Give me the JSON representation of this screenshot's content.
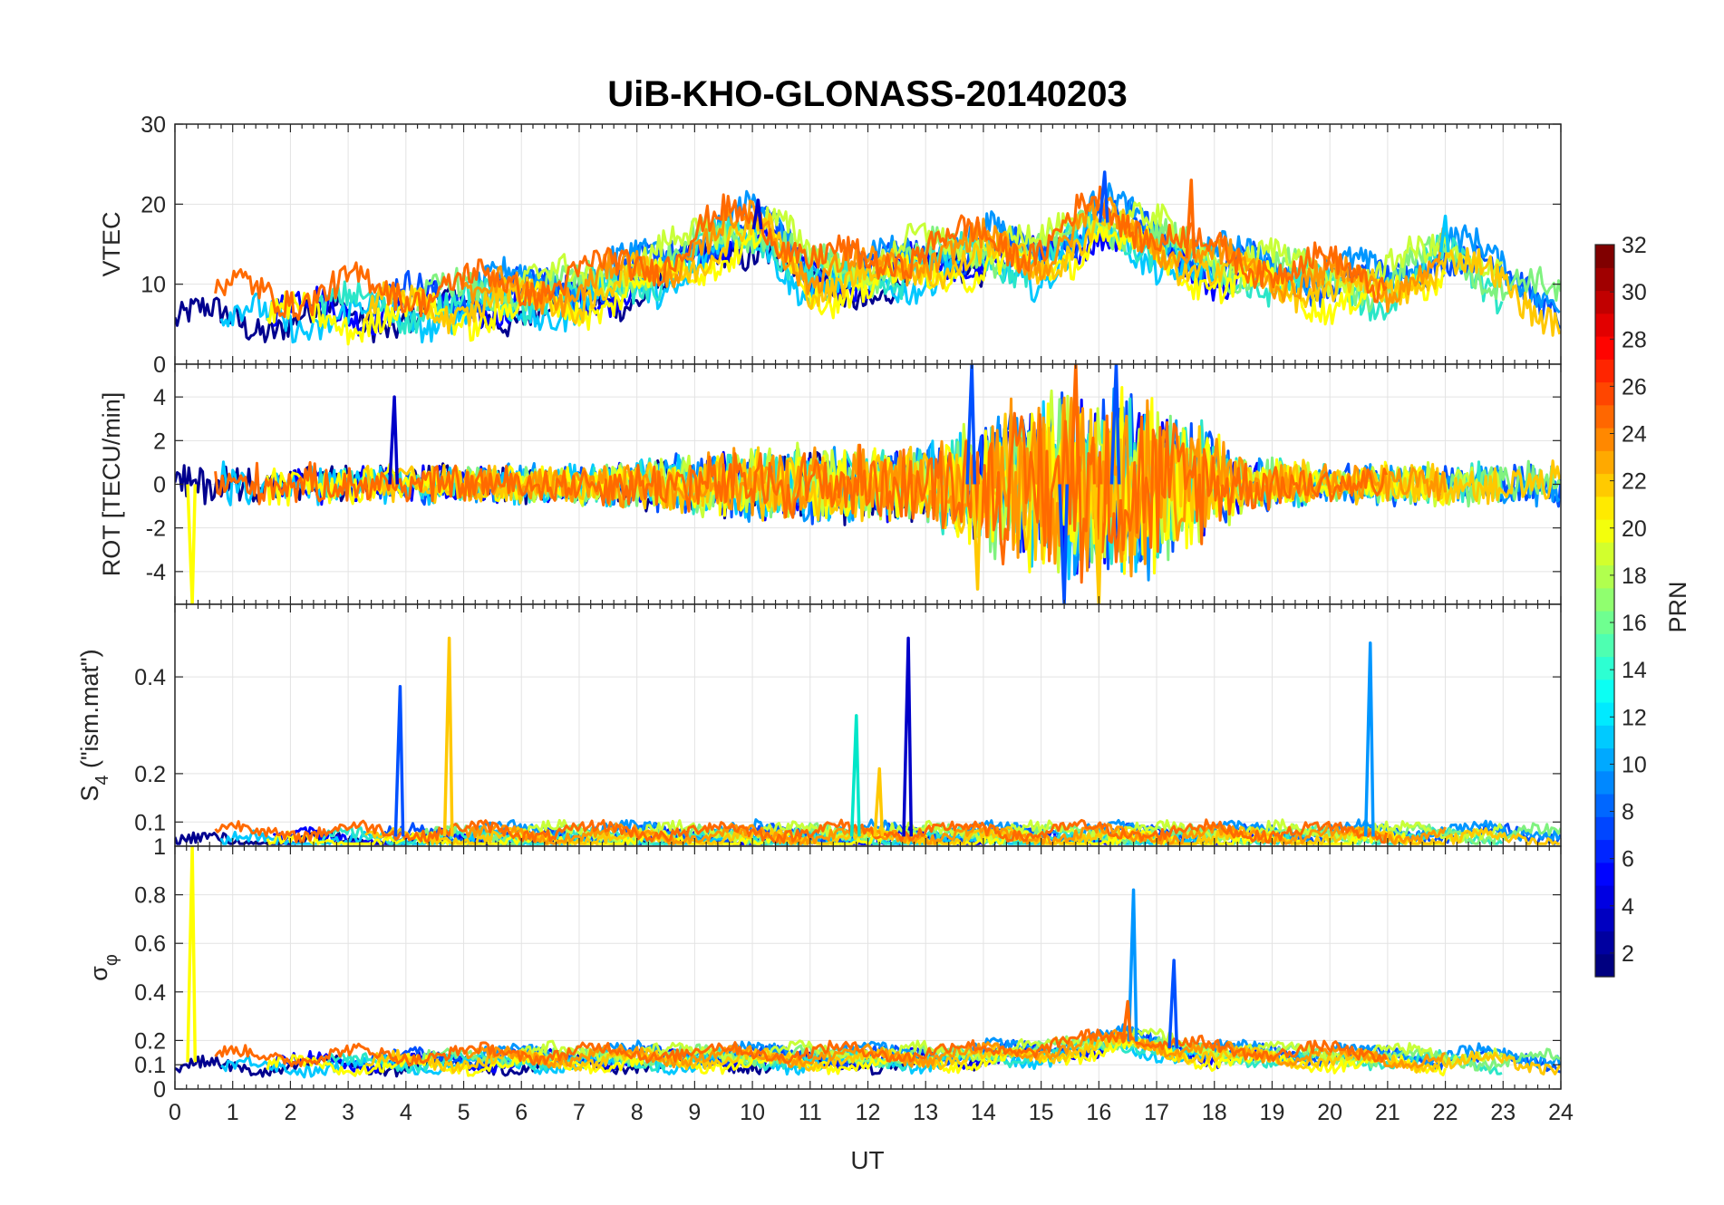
{
  "chart_data": {
    "type": "line",
    "title": "UiB-KHO-GLONASS-20140203",
    "xlabel": "UT",
    "xlim": [
      0,
      24
    ],
    "x_ticks": [
      "0",
      "1",
      "2",
      "3",
      "4",
      "5",
      "6",
      "7",
      "8",
      "9",
      "10",
      "11",
      "12",
      "13",
      "14",
      "15",
      "16",
      "17",
      "18",
      "19",
      "20",
      "21",
      "22",
      "23",
      "24"
    ],
    "panels": [
      {
        "id": "vtec",
        "ylabel": "VTEC",
        "ylim": [
          0,
          30
        ],
        "y_ticks": [
          {
            "v": 10,
            "t": "10"
          },
          {
            "v": 20,
            "t": "20"
          },
          {
            "v": 30,
            "t": "30"
          }
        ],
        "top_label": "",
        "bottom_label": "0",
        "baseline": 7,
        "series_profile": [
          [
            0,
            7
          ],
          [
            3,
            7.5
          ],
          [
            5,
            8
          ],
          [
            7,
            9
          ],
          [
            8.5,
            12
          ],
          [
            9.5,
            16
          ],
          [
            10.2,
            17
          ],
          [
            11,
            11
          ],
          [
            12,
            11
          ],
          [
            13,
            13
          ],
          [
            14,
            14
          ],
          [
            15,
            13
          ],
          [
            16,
            18
          ],
          [
            17,
            15
          ],
          [
            18,
            12
          ],
          [
            20,
            10
          ],
          [
            21,
            9
          ],
          [
            22,
            14
          ],
          [
            23,
            10
          ],
          [
            24,
            7
          ]
        ],
        "amplitude": 4.5,
        "spikes": [
          {
            "x": 16.1,
            "y": 24,
            "color": "#0050ff"
          },
          {
            "x": 17.6,
            "y": 23,
            "color": "#ff6a00"
          },
          {
            "x": 10.1,
            "y": 20.5,
            "color": "#0000c8"
          },
          {
            "x": 22.0,
            "y": 18.5,
            "color": "#00c8ff"
          }
        ]
      },
      {
        "id": "rot",
        "ylabel": "ROT [TECU/min]",
        "ylim": [
          -5.5,
          5.5
        ],
        "y_ticks": [
          {
            "v": -4,
            "t": "-4"
          },
          {
            "v": -2,
            "t": "-2"
          },
          {
            "v": 0,
            "t": "0"
          },
          {
            "v": 2,
            "t": "2"
          },
          {
            "v": 4,
            "t": "4"
          }
        ],
        "top_label": "",
        "bottom_label": "",
        "baseline": 0,
        "series_profile": [
          [
            0,
            0
          ],
          [
            24,
            0
          ]
        ],
        "envelope": [
          [
            0,
            1.2
          ],
          [
            3,
            1.0
          ],
          [
            7,
            1.0
          ],
          [
            9,
            1.5
          ],
          [
            11,
            2.0
          ],
          [
            13,
            2.0
          ],
          [
            14,
            3.5
          ],
          [
            15,
            4.5
          ],
          [
            16.5,
            5.0
          ],
          [
            17.5,
            3.5
          ],
          [
            18.5,
            1.5
          ],
          [
            20,
            1.0
          ],
          [
            24,
            1.2
          ]
        ],
        "spikes": [
          {
            "x": 3.8,
            "y": 4.0,
            "color": "#0000c8"
          },
          {
            "x": 13.8,
            "y": 5.5,
            "color": "#0050ff"
          },
          {
            "x": 15.6,
            "y": 5.5,
            "color": "#ff6a00"
          },
          {
            "x": 16.3,
            "y": 5.5,
            "color": "#0050ff"
          },
          {
            "x": 16.0,
            "y": -5.5,
            "color": "#ffc800"
          },
          {
            "x": 15.4,
            "y": -5.5,
            "color": "#0050ff"
          },
          {
            "x": 0.3,
            "y": -5.5,
            "color": "#ffff00"
          },
          {
            "x": 13.9,
            "y": -4.8,
            "color": "#ffc800"
          }
        ]
      },
      {
        "id": "s4",
        "ylabel_main": "S",
        "ylabel_sub": "4",
        "ylabel_rest": " (\"ism.mat\")",
        "ylim": [
          0.05,
          0.55
        ],
        "y_ticks": [
          {
            "v": 0.1,
            "t": "0.1"
          },
          {
            "v": 0.2,
            "t": "0.2"
          },
          {
            "v": 0.4,
            "t": "0.4"
          }
        ],
        "top_label": "",
        "bottom_label": "",
        "baseline": 0.07,
        "series_profile": [
          [
            0,
            0.07
          ],
          [
            24,
            0.07
          ]
        ],
        "amplitude": 0.03,
        "spikes": [
          {
            "x": 3.9,
            "y": 0.38,
            "color": "#0050ff"
          },
          {
            "x": 4.75,
            "y": 0.48,
            "color": "#ffc800"
          },
          {
            "x": 11.8,
            "y": 0.32,
            "color": "#00e6c8"
          },
          {
            "x": 12.7,
            "y": 0.48,
            "color": "#0000c8"
          },
          {
            "x": 20.7,
            "y": 0.47,
            "color": "#0096ff"
          },
          {
            "x": 12.2,
            "y": 0.21,
            "color": "#ffc800"
          }
        ]
      },
      {
        "id": "sigma",
        "ylabel_main": "σ",
        "ylabel_sub": "φ",
        "ylabel_rest": "",
        "ylim": [
          0,
          1
        ],
        "y_ticks": [
          {
            "v": 0,
            "t": "0"
          },
          {
            "v": 0.1,
            "t": "0.1"
          },
          {
            "v": 0.2,
            "t": "0.2"
          },
          {
            "v": 0.4,
            "t": "0.4"
          },
          {
            "v": 0.6,
            "t": "0.6"
          },
          {
            "v": 0.8,
            "t": "0.8"
          }
        ],
        "top_label": "1",
        "bottom_label": "",
        "baseline": 0.11,
        "series_profile": [
          [
            0,
            0.11
          ],
          [
            8,
            0.13
          ],
          [
            13,
            0.13
          ],
          [
            15,
            0.15
          ],
          [
            16.5,
            0.2
          ],
          [
            18,
            0.14
          ],
          [
            24,
            0.11
          ]
        ],
        "amplitude": 0.06,
        "spikes": [
          {
            "x": 0.3,
            "y": 1.0,
            "color": "#ffff00"
          },
          {
            "x": 16.6,
            "y": 0.82,
            "color": "#0096ff"
          },
          {
            "x": 17.3,
            "y": 0.53,
            "color": "#0050ff"
          },
          {
            "x": 16.5,
            "y": 0.36,
            "color": "#ff6a00"
          }
        ]
      }
    ],
    "series": [
      {
        "name": "",
        "color": "#00008f"
      },
      {
        "name": "",
        "color": "#0000ff"
      },
      {
        "name": "",
        "color": "#0050ff"
      },
      {
        "name": "",
        "color": "#0096ff"
      },
      {
        "name": "",
        "color": "#00c8ff"
      },
      {
        "name": "",
        "color": "#2be6c8"
      },
      {
        "name": "",
        "color": "#7ff27f"
      },
      {
        "name": "",
        "color": "#c8ff38"
      },
      {
        "name": "",
        "color": "#ffff00"
      },
      {
        "name": "",
        "color": "#ffc800"
      },
      {
        "name": "",
        "color": "#ff9600"
      },
      {
        "name": "",
        "color": "#ff6a00"
      }
    ],
    "colorbar": {
      "label": "PRN",
      "range": [
        1,
        32
      ],
      "ticks": [
        "2",
        "4",
        "6",
        "8",
        "10",
        "12",
        "14",
        "16",
        "18",
        "20",
        "22",
        "24",
        "26",
        "28",
        "30",
        "32"
      ],
      "tick_values": [
        2,
        4,
        6,
        8,
        10,
        12,
        14,
        16,
        18,
        20,
        22,
        24,
        26,
        28,
        30,
        32
      ],
      "colormap": "jet"
    },
    "grid": true
  }
}
